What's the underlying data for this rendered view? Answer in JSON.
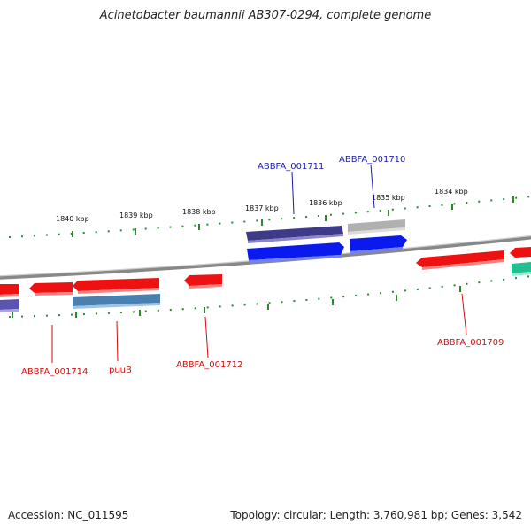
{
  "title": "Acinetobacter baumannii AB307-0294, complete genome",
  "footer": {
    "accession": "Accession: NC_011595",
    "summary": "Topology: circular; Length: 3,760,981 bp; Genes: 3,542"
  },
  "ticks": [
    "1840 kbp",
    "1839 kbp",
    "1838 kbp",
    "1837 kbp",
    "1836 kbp",
    "1835 kbp",
    "1834 kbp"
  ],
  "gene_labels": [
    {
      "text": "ABBFA_001711",
      "color": "#1a1aaa"
    },
    {
      "text": "ABBFA_001710",
      "color": "#1a1aaa"
    },
    {
      "text": "ABBFA_001714",
      "color": "#cc1111"
    },
    {
      "text": "puuB",
      "color": "#cc1111"
    },
    {
      "text": "ABBFA_001712",
      "color": "#cc1111"
    },
    {
      "text": "ABBFA_001709",
      "color": "#cc1111"
    }
  ],
  "colors": {
    "forward_cds": "#0a1aee",
    "reverse_cds": "#ee1111",
    "gene_dark_blue": "#3d3a8a",
    "gene_gray": "#b0b0b0",
    "gene_steel_blue": "#4a80b0",
    "gene_teal": "#20c090",
    "gene_slate": "#5a55b0",
    "tick_green": "#2a8a2a",
    "backbone": "#888888"
  }
}
